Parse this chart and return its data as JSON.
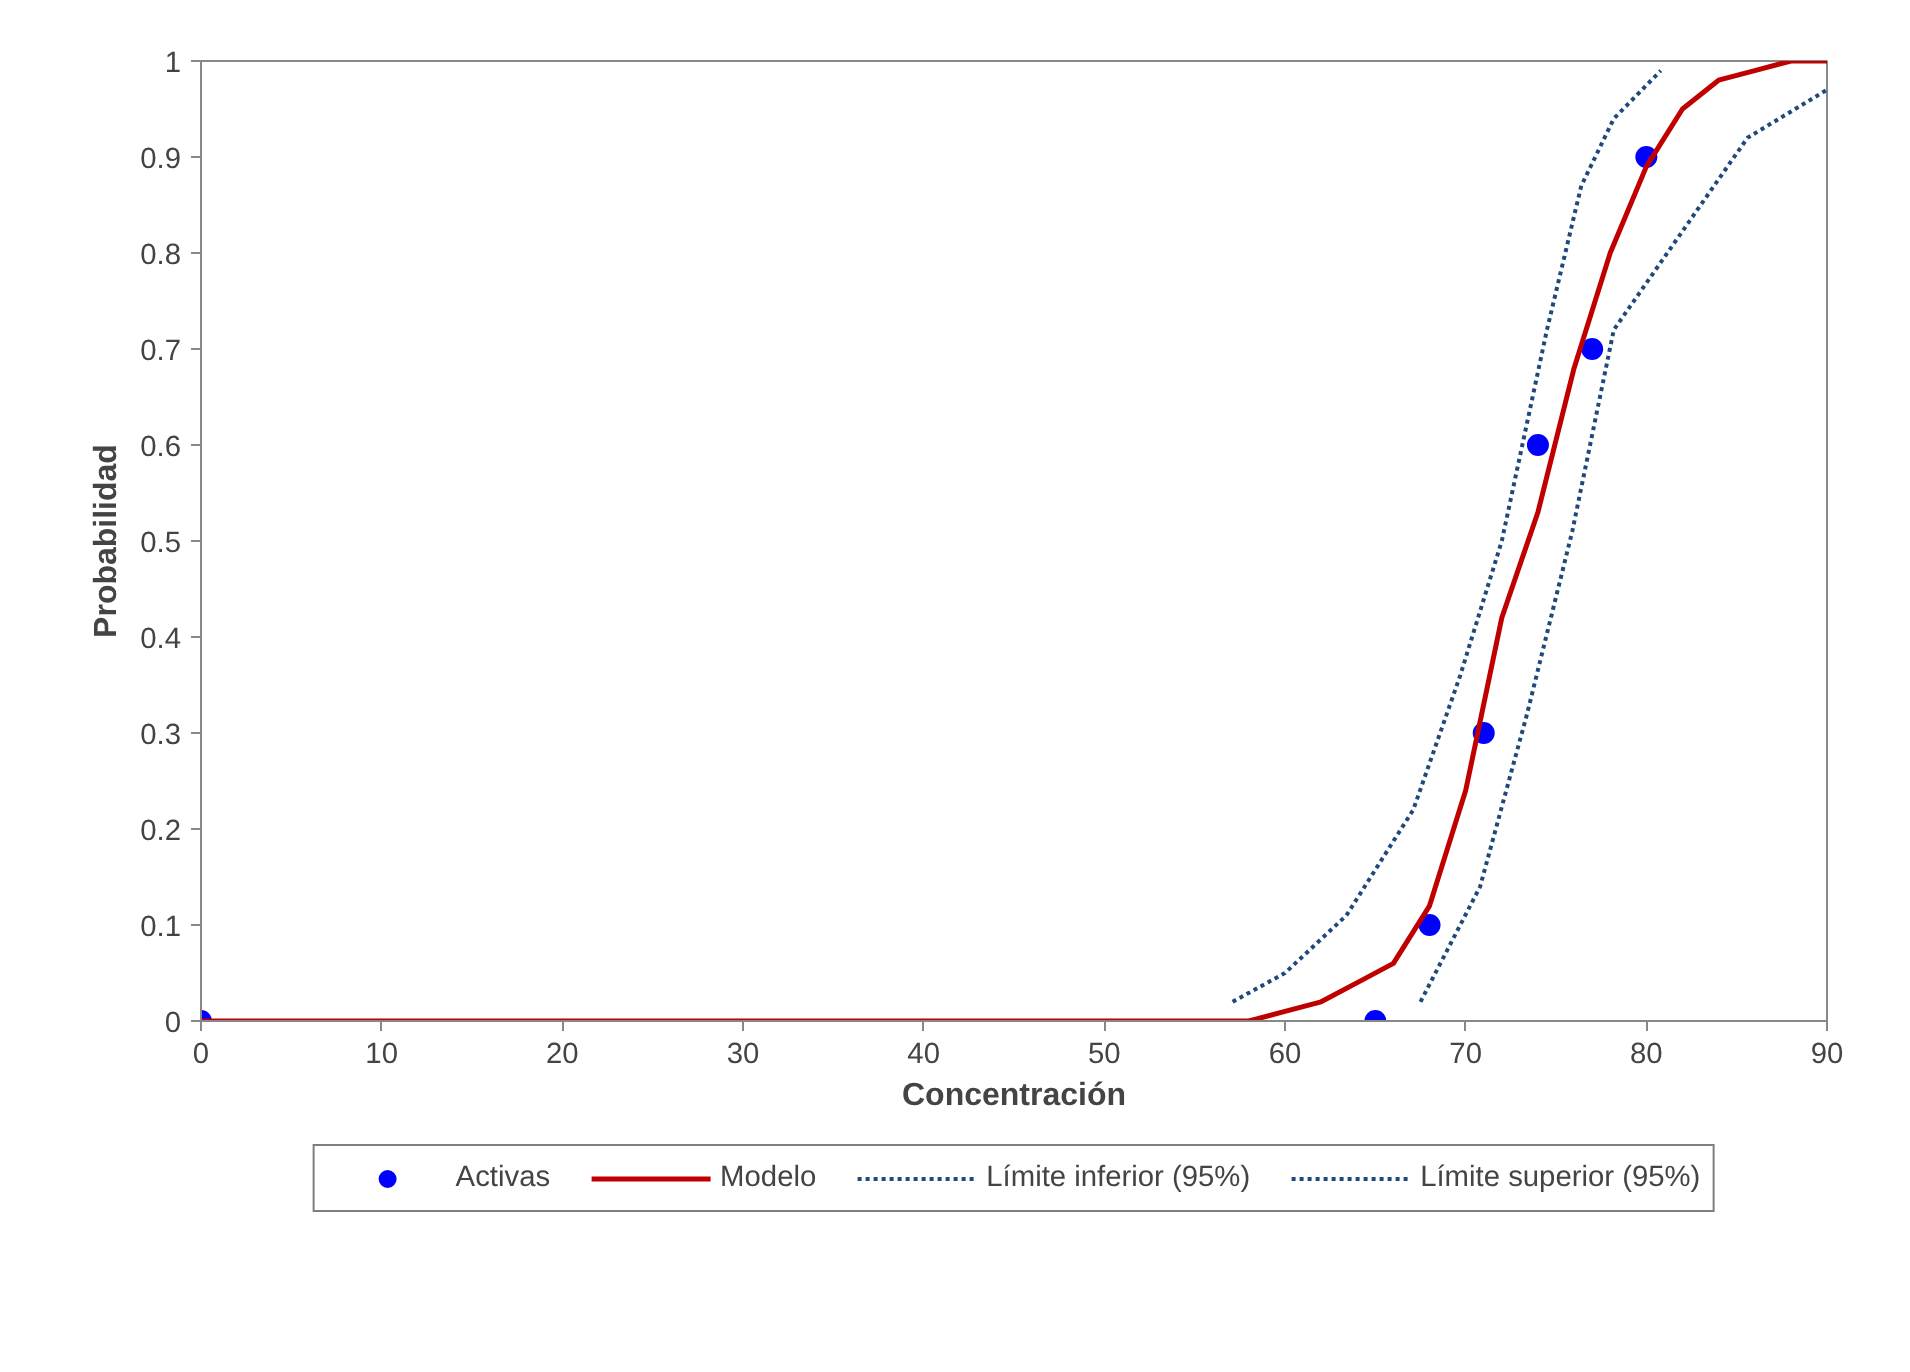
{
  "chart_data": {
    "type": "scatter",
    "xlabel": "Concentración",
    "ylabel": "Probabilidad",
    "xlim": [
      0,
      90
    ],
    "ylim": [
      0,
      1
    ],
    "xticks": [
      0,
      10,
      20,
      30,
      40,
      50,
      60,
      70,
      80,
      90
    ],
    "yticks": [
      0,
      0.1,
      0.2,
      0.3,
      0.4,
      0.5,
      0.6,
      0.7,
      0.8,
      0.9,
      1
    ],
    "grid": false,
    "legend": "bottom",
    "series": [
      {
        "name": "Activas",
        "marker": "circle",
        "color": "#0000ff",
        "x": [
          0,
          65,
          68,
          71,
          74,
          77,
          80
        ],
        "values": [
          0,
          0,
          0.1,
          0.3,
          0.6,
          0.7,
          0.9
        ]
      },
      {
        "name": "Modelo",
        "type": "line",
        "line_style": "solid",
        "color": "#c00000",
        "x": [
          0,
          55,
          58,
          60,
          62,
          64,
          66,
          68,
          70,
          72,
          74,
          76,
          78,
          80,
          82,
          84,
          86,
          88,
          90
        ],
        "values": [
          0,
          0,
          0,
          0.01,
          0.02,
          0.04,
          0.06,
          0.12,
          0.24,
          0.42,
          0.53,
          0.68,
          0.8,
          0.89,
          0.95,
          0.98,
          0.99,
          1,
          1
        ]
      },
      {
        "name": "Límite inferior (95%)",
        "type": "line",
        "line_style": "dotted",
        "color": "#1f497d",
        "x": [
          57.1,
          60,
          63.4,
          67.1,
          69.7,
          72,
          74.5,
          76.4,
          78.2,
          80.8
        ],
        "values": [
          0.02,
          0.05,
          0.11,
          0.22,
          0.36,
          0.5,
          0.72,
          0.87,
          0.94,
          0.99
        ]
      },
      {
        "name": "Límite superior (95%)",
        "type": "line",
        "line_style": "dotted",
        "color": "#1f497d",
        "x": [
          67.5,
          70.8,
          73.4,
          75.9,
          78.2,
          81.9,
          85.6,
          90
        ],
        "values": [
          0.02,
          0.14,
          0.32,
          0.51,
          0.72,
          0.82,
          0.92,
          0.97
        ]
      }
    ]
  }
}
